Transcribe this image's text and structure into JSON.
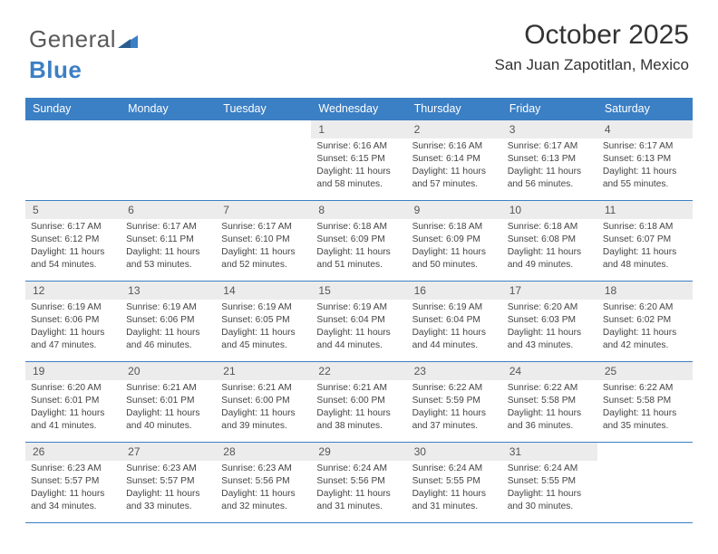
{
  "logo": {
    "part1": "General",
    "part2": "Blue"
  },
  "title": "October 2025",
  "subtitle": "San Juan Zapotitlan, Mexico",
  "colors": {
    "header_bg": "#3b7fc4",
    "header_text": "#ffffff",
    "daynum_bg": "#ececec",
    "border": "#3b7fc4",
    "logo_gray": "#5a5a5a",
    "logo_blue": "#3b7fc4"
  },
  "weekdays": [
    "Sunday",
    "Monday",
    "Tuesday",
    "Wednesday",
    "Thursday",
    "Friday",
    "Saturday"
  ],
  "weeks": [
    [
      null,
      null,
      null,
      {
        "n": "1",
        "sr": "Sunrise: 6:16 AM",
        "ss": "Sunset: 6:15 PM",
        "dl": "Daylight: 11 hours and 58 minutes."
      },
      {
        "n": "2",
        "sr": "Sunrise: 6:16 AM",
        "ss": "Sunset: 6:14 PM",
        "dl": "Daylight: 11 hours and 57 minutes."
      },
      {
        "n": "3",
        "sr": "Sunrise: 6:17 AM",
        "ss": "Sunset: 6:13 PM",
        "dl": "Daylight: 11 hours and 56 minutes."
      },
      {
        "n": "4",
        "sr": "Sunrise: 6:17 AM",
        "ss": "Sunset: 6:13 PM",
        "dl": "Daylight: 11 hours and 55 minutes."
      }
    ],
    [
      {
        "n": "5",
        "sr": "Sunrise: 6:17 AM",
        "ss": "Sunset: 6:12 PM",
        "dl": "Daylight: 11 hours and 54 minutes."
      },
      {
        "n": "6",
        "sr": "Sunrise: 6:17 AM",
        "ss": "Sunset: 6:11 PM",
        "dl": "Daylight: 11 hours and 53 minutes."
      },
      {
        "n": "7",
        "sr": "Sunrise: 6:17 AM",
        "ss": "Sunset: 6:10 PM",
        "dl": "Daylight: 11 hours and 52 minutes."
      },
      {
        "n": "8",
        "sr": "Sunrise: 6:18 AM",
        "ss": "Sunset: 6:09 PM",
        "dl": "Daylight: 11 hours and 51 minutes."
      },
      {
        "n": "9",
        "sr": "Sunrise: 6:18 AM",
        "ss": "Sunset: 6:09 PM",
        "dl": "Daylight: 11 hours and 50 minutes."
      },
      {
        "n": "10",
        "sr": "Sunrise: 6:18 AM",
        "ss": "Sunset: 6:08 PM",
        "dl": "Daylight: 11 hours and 49 minutes."
      },
      {
        "n": "11",
        "sr": "Sunrise: 6:18 AM",
        "ss": "Sunset: 6:07 PM",
        "dl": "Daylight: 11 hours and 48 minutes."
      }
    ],
    [
      {
        "n": "12",
        "sr": "Sunrise: 6:19 AM",
        "ss": "Sunset: 6:06 PM",
        "dl": "Daylight: 11 hours and 47 minutes."
      },
      {
        "n": "13",
        "sr": "Sunrise: 6:19 AM",
        "ss": "Sunset: 6:06 PM",
        "dl": "Daylight: 11 hours and 46 minutes."
      },
      {
        "n": "14",
        "sr": "Sunrise: 6:19 AM",
        "ss": "Sunset: 6:05 PM",
        "dl": "Daylight: 11 hours and 45 minutes."
      },
      {
        "n": "15",
        "sr": "Sunrise: 6:19 AM",
        "ss": "Sunset: 6:04 PM",
        "dl": "Daylight: 11 hours and 44 minutes."
      },
      {
        "n": "16",
        "sr": "Sunrise: 6:19 AM",
        "ss": "Sunset: 6:04 PM",
        "dl": "Daylight: 11 hours and 44 minutes."
      },
      {
        "n": "17",
        "sr": "Sunrise: 6:20 AM",
        "ss": "Sunset: 6:03 PM",
        "dl": "Daylight: 11 hours and 43 minutes."
      },
      {
        "n": "18",
        "sr": "Sunrise: 6:20 AM",
        "ss": "Sunset: 6:02 PM",
        "dl": "Daylight: 11 hours and 42 minutes."
      }
    ],
    [
      {
        "n": "19",
        "sr": "Sunrise: 6:20 AM",
        "ss": "Sunset: 6:01 PM",
        "dl": "Daylight: 11 hours and 41 minutes."
      },
      {
        "n": "20",
        "sr": "Sunrise: 6:21 AM",
        "ss": "Sunset: 6:01 PM",
        "dl": "Daylight: 11 hours and 40 minutes."
      },
      {
        "n": "21",
        "sr": "Sunrise: 6:21 AM",
        "ss": "Sunset: 6:00 PM",
        "dl": "Daylight: 11 hours and 39 minutes."
      },
      {
        "n": "22",
        "sr": "Sunrise: 6:21 AM",
        "ss": "Sunset: 6:00 PM",
        "dl": "Daylight: 11 hours and 38 minutes."
      },
      {
        "n": "23",
        "sr": "Sunrise: 6:22 AM",
        "ss": "Sunset: 5:59 PM",
        "dl": "Daylight: 11 hours and 37 minutes."
      },
      {
        "n": "24",
        "sr": "Sunrise: 6:22 AM",
        "ss": "Sunset: 5:58 PM",
        "dl": "Daylight: 11 hours and 36 minutes."
      },
      {
        "n": "25",
        "sr": "Sunrise: 6:22 AM",
        "ss": "Sunset: 5:58 PM",
        "dl": "Daylight: 11 hours and 35 minutes."
      }
    ],
    [
      {
        "n": "26",
        "sr": "Sunrise: 6:23 AM",
        "ss": "Sunset: 5:57 PM",
        "dl": "Daylight: 11 hours and 34 minutes."
      },
      {
        "n": "27",
        "sr": "Sunrise: 6:23 AM",
        "ss": "Sunset: 5:57 PM",
        "dl": "Daylight: 11 hours and 33 minutes."
      },
      {
        "n": "28",
        "sr": "Sunrise: 6:23 AM",
        "ss": "Sunset: 5:56 PM",
        "dl": "Daylight: 11 hours and 32 minutes."
      },
      {
        "n": "29",
        "sr": "Sunrise: 6:24 AM",
        "ss": "Sunset: 5:56 PM",
        "dl": "Daylight: 11 hours and 31 minutes."
      },
      {
        "n": "30",
        "sr": "Sunrise: 6:24 AM",
        "ss": "Sunset: 5:55 PM",
        "dl": "Daylight: 11 hours and 31 minutes."
      },
      {
        "n": "31",
        "sr": "Sunrise: 6:24 AM",
        "ss": "Sunset: 5:55 PM",
        "dl": "Daylight: 11 hours and 30 minutes."
      },
      null
    ]
  ]
}
